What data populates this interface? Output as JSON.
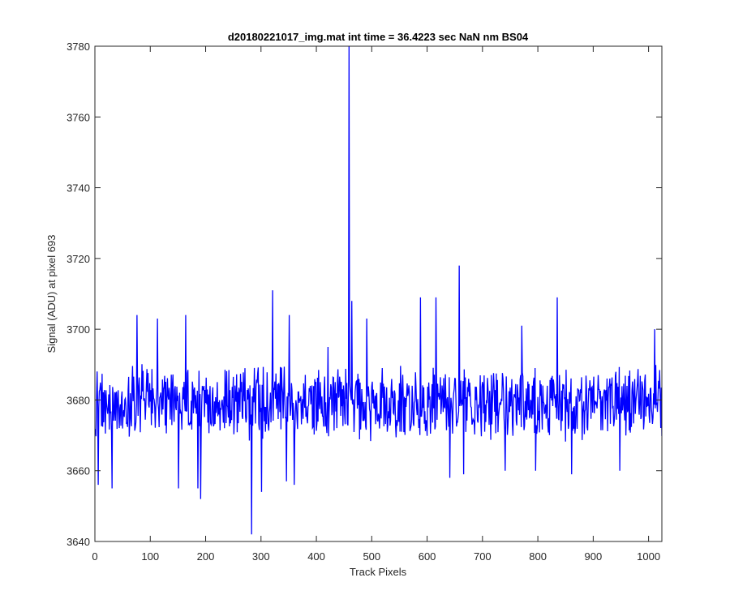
{
  "chart_data": {
    "type": "line",
    "title": "d20180221017_img.mat int time = 36.4223 sec  NaN nm BS04",
    "xlabel": "Track Pixels",
    "ylabel": "Signal (ADU) at pixel 693",
    "xlim": [
      0,
      1024
    ],
    "ylim": [
      3640,
      3780
    ],
    "xticks": [
      0,
      100,
      200,
      300,
      400,
      500,
      600,
      700,
      800,
      900,
      1000
    ],
    "yticks": [
      3640,
      3660,
      3680,
      3700,
      3720,
      3740,
      3760,
      3780
    ],
    "grid": false,
    "line_color": "#0000ff",
    "series": [
      {
        "baseline": 3679,
        "noise_amplitude": 8,
        "num_points": 1024,
        "spikes": [
          {
            "x": 5,
            "y": 3656
          },
          {
            "x": 30,
            "y": 3655
          },
          {
            "x": 75,
            "y": 3704
          },
          {
            "x": 112,
            "y": 3703
          },
          {
            "x": 150,
            "y": 3655
          },
          {
            "x": 163,
            "y": 3704
          },
          {
            "x": 185,
            "y": 3655
          },
          {
            "x": 190,
            "y": 3652
          },
          {
            "x": 282,
            "y": 3642
          },
          {
            "x": 300,
            "y": 3654
          },
          {
            "x": 320,
            "y": 3711
          },
          {
            "x": 345,
            "y": 3657
          },
          {
            "x": 350,
            "y": 3704
          },
          {
            "x": 359,
            "y": 3656
          },
          {
            "x": 420,
            "y": 3695
          },
          {
            "x": 458,
            "y": 3780
          },
          {
            "x": 463,
            "y": 3708
          },
          {
            "x": 490,
            "y": 3703
          },
          {
            "x": 587,
            "y": 3709
          },
          {
            "x": 615,
            "y": 3709
          },
          {
            "x": 640,
            "y": 3658
          },
          {
            "x": 657,
            "y": 3718
          },
          {
            "x": 665,
            "y": 3659
          },
          {
            "x": 740,
            "y": 3660
          },
          {
            "x": 770,
            "y": 3701
          },
          {
            "x": 795,
            "y": 3660
          },
          {
            "x": 834,
            "y": 3709
          },
          {
            "x": 860,
            "y": 3659
          },
          {
            "x": 947,
            "y": 3660
          },
          {
            "x": 1010,
            "y": 3700
          }
        ]
      }
    ]
  }
}
